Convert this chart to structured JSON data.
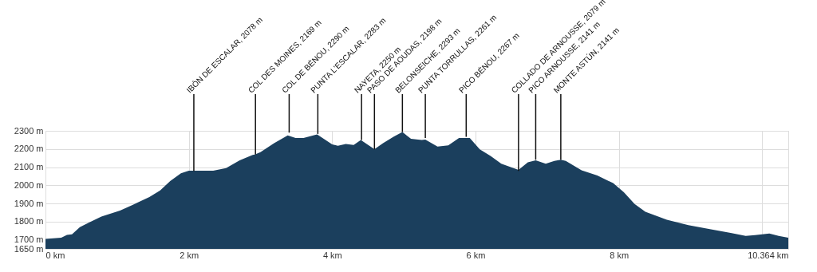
{
  "chart_data": {
    "type": "area",
    "x": [
      0,
      0.22,
      0.3,
      0.37,
      0.48,
      0.59,
      0.78,
      1.04,
      1.22,
      1.45,
      1.6,
      1.74,
      1.89,
      2.0,
      2.07,
      2.34,
      2.52,
      2.71,
      2.89,
      2.92,
      3.0,
      3.19,
      3.38,
      3.49,
      3.6,
      3.79,
      4.0,
      4.08,
      4.19,
      4.3,
      4.4,
      4.49,
      4.59,
      4.71,
      4.86,
      4.98,
      5.1,
      5.25,
      5.3,
      5.47,
      5.62,
      5.77,
      5.92,
      6.06,
      6.21,
      6.36,
      6.6,
      6.73,
      6.84,
      6.98,
      7.1,
      7.19,
      7.26,
      7.48,
      7.7,
      7.92,
      8.07,
      8.22,
      8.37,
      8.67,
      8.97,
      9.27,
      9.56,
      9.77,
      9.9,
      10.1,
      10.23,
      10.364
    ],
    "series": [
      {
        "color": "#1b3f5d",
        "values": [
          1705,
          1712,
          1727,
          1730,
          1770,
          1792,
          1828,
          1861,
          1893,
          1936,
          1972,
          2023,
          2066,
          2080,
          2080,
          2080,
          2095,
          2138,
          2167,
          2169,
          2182,
          2232,
          2275,
          2261,
          2261,
          2280,
          2225,
          2218,
          2228,
          2222,
          2249,
          2225,
          2199,
          2232,
          2268,
          2293,
          2256,
          2249,
          2252,
          2213,
          2220,
          2261,
          2261,
          2198,
          2162,
          2119,
          2085,
          2126,
          2137,
          2119,
          2134,
          2141,
          2134,
          2083,
          2054,
          2012,
          1962,
          1897,
          1854,
          1810,
          1781,
          1759,
          1738,
          1721,
          1726,
          1735,
          1721,
          1712
        ]
      }
    ],
    "xlim": [
      0,
      10.364
    ],
    "xticks": [
      {
        "value": 0,
        "label": "0 km"
      },
      {
        "value": 2,
        "label": "2 km"
      },
      {
        "value": 4,
        "label": "4 km"
      },
      {
        "value": 6,
        "label": "6 km"
      },
      {
        "value": 8,
        "label": "8 km"
      },
      {
        "value": 10,
        "label": null
      },
      {
        "value": 10.364,
        "label": "10.364 km"
      }
    ],
    "ylim": [
      1650,
      2300
    ],
    "yticks": [
      {
        "value": 1650,
        "label": "1650 m"
      },
      {
        "value": 1700,
        "label": "1700 m"
      },
      {
        "value": 1800,
        "label": "1800 m"
      },
      {
        "value": 1900,
        "label": "1900 m"
      },
      {
        "value": 2000,
        "label": "2000 m"
      },
      {
        "value": 2100,
        "label": "2100 m"
      },
      {
        "value": 2200,
        "label": "2200 m"
      },
      {
        "value": 2300,
        "label": "2300 m"
      }
    ],
    "grid": true,
    "annotations": [
      {
        "text": "IBÓN DE ESCALAR, 2078 m",
        "x": 2.07,
        "y": 2078
      },
      {
        "text": "COL DES MOINES, 2169 m",
        "x": 2.93,
        "y": 2169
      },
      {
        "text": "COL DE BÉNOU, 2290 m",
        "x": 3.4,
        "y": 2290
      },
      {
        "text": "PUNTA L'ESCALAR, 2283 m",
        "x": 3.8,
        "y": 2283
      },
      {
        "text": "NAYETA, 2250 m",
        "x": 4.41,
        "y": 2250
      },
      {
        "text": "PASO DE AOUDAS, 2198 m",
        "x": 4.59,
        "y": 2198
      },
      {
        "text": "BELONSEICHE, 2293 m",
        "x": 4.98,
        "y": 2293
      },
      {
        "text": "PUNTA TORRULLAS, 2261 m",
        "x": 5.3,
        "y": 2261
      },
      {
        "text": "PICO BÉNOU, 2267 m",
        "x": 5.87,
        "y": 2267
      },
      {
        "text": "COLLADO DE ARNOUSSE,  2079 m",
        "x": 6.6,
        "y": 2079
      },
      {
        "text": "PICO ARNOUSSE, 2141 m",
        "x": 6.84,
        "y": 2141
      },
      {
        "text": "MONTE ASTÚN, 2141 m",
        "x": 7.19,
        "y": 2141
      }
    ]
  }
}
